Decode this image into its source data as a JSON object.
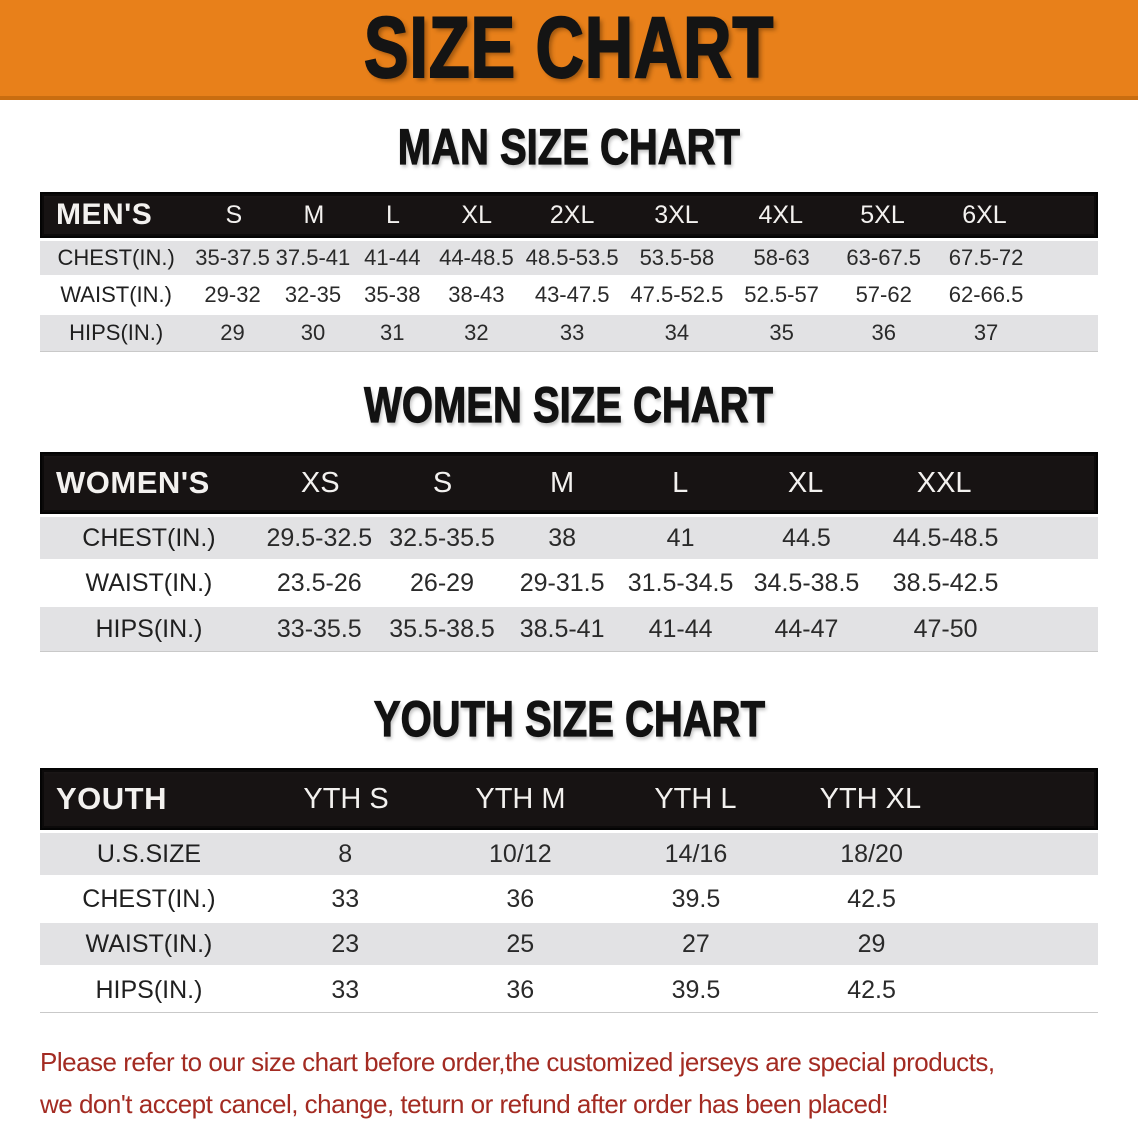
{
  "banner": {
    "title": "SIZE CHART",
    "bg_color": "#E8801A"
  },
  "sections": [
    {
      "heading": "MAN SIZE CHART",
      "group_label": "MEN'S",
      "sizes": [
        "S",
        "M",
        "L",
        "XL",
        "2XL",
        "3XL",
        "4XL",
        "5XL",
        "6XL"
      ],
      "rows": [
        {
          "label": "CHEST(IN.)",
          "values": [
            "35-37.5",
            "37.5-41",
            "41-44",
            "44-48.5",
            "48.5-53.5",
            "53.5-58",
            "58-63",
            "63-67.5",
            "67.5-72"
          ]
        },
        {
          "label": "WAIST(IN.)",
          "values": [
            "29-32",
            "32-35",
            "35-38",
            "38-43",
            "43-47.5",
            "47.5-52.5",
            "52.5-57",
            "57-62",
            "62-66.5"
          ]
        },
        {
          "label": "HIPS(IN.)",
          "values": [
            "29",
            "30",
            "31",
            "32",
            "33",
            "34",
            "35",
            "36",
            "37"
          ]
        }
      ]
    },
    {
      "heading": "WOMEN SIZE CHART",
      "group_label": "WOMEN'S",
      "sizes": [
        "XS",
        "S",
        "M",
        "L",
        "XL",
        "XXL"
      ],
      "rows": [
        {
          "label": "CHEST(IN.)",
          "values": [
            "29.5-32.5",
            "32.5-35.5",
            "38",
            "41",
            "44.5",
            "44.5-48.5"
          ]
        },
        {
          "label": "WAIST(IN.)",
          "values": [
            "23.5-26",
            "26-29",
            "29-31.5",
            "31.5-34.5",
            "34.5-38.5",
            "38.5-42.5"
          ]
        },
        {
          "label": "HIPS(IN.)",
          "values": [
            "33-35.5",
            "35.5-38.5",
            "38.5-41",
            "41-44",
            "44-47",
            "47-50"
          ]
        }
      ]
    },
    {
      "heading": "YOUTH SIZE CHART",
      "group_label": "YOUTH",
      "sizes": [
        "YTH S",
        "YTH M",
        "YTH L",
        "YTH XL"
      ],
      "rows": [
        {
          "label": "U.S.SIZE",
          "values": [
            "8",
            "10/12",
            "14/16",
            "18/20"
          ]
        },
        {
          "label": "CHEST(IN.)",
          "values": [
            "33",
            "36",
            "39.5",
            "42.5"
          ]
        },
        {
          "label": "WAIST(IN.)",
          "values": [
            "23",
            "25",
            "27",
            "29"
          ]
        },
        {
          "label": "HIPS(IN.)",
          "values": [
            "33",
            "36",
            "39.5",
            "42.5"
          ]
        }
      ]
    }
  ],
  "disclaimer": {
    "line1": "Please refer to our size chart before order,the customized jerseys are special products,",
    "line2": "we don't accept cancel, change, teturn or refund after order has been placed!",
    "color": "#A32B22"
  }
}
